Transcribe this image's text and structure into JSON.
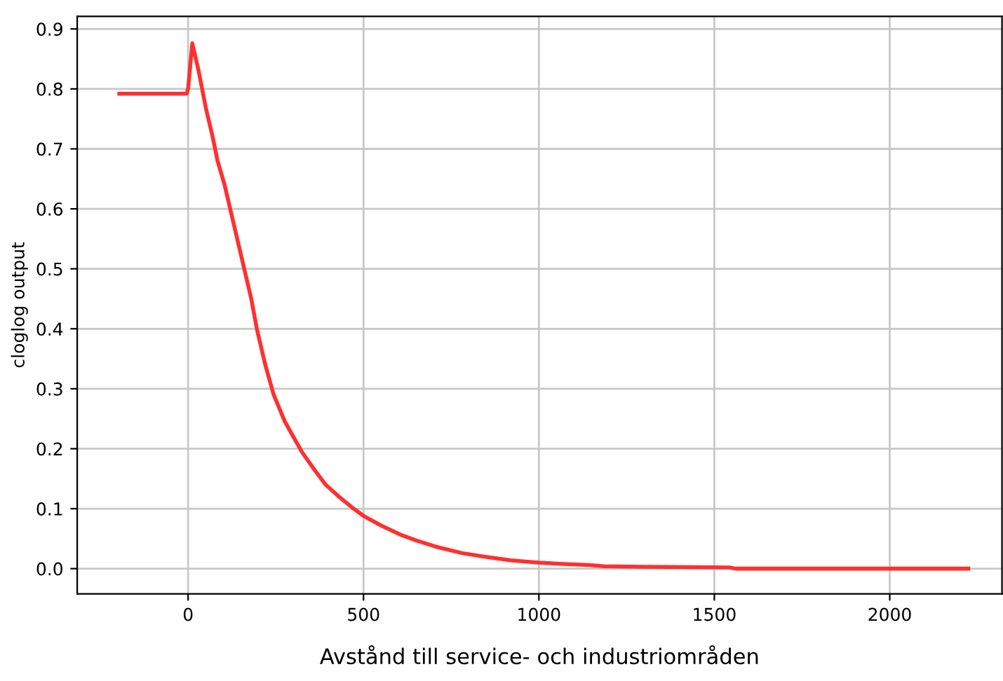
{
  "chart_data": {
    "type": "line",
    "xlabel": "Avstånd till service- och industriområden",
    "ylabel": "cloglog output",
    "x": [
      -196,
      -4,
      0,
      12,
      30,
      50,
      70,
      84,
      104,
      124,
      144,
      164,
      180,
      196,
      220,
      244,
      276,
      300,
      324,
      360,
      392,
      430,
      472,
      500,
      550,
      604,
      650,
      704,
      780,
      844,
      920,
      1000,
      1060,
      1144,
      1184,
      1300,
      1544,
      1560,
      1800,
      2224
    ],
    "series": [
      {
        "color": "#ff3030",
        "values": [
          0.792,
          0.792,
          0.8,
          0.876,
          0.83,
          0.77,
          0.72,
          0.68,
          0.64,
          0.59,
          0.54,
          0.49,
          0.45,
          0.4,
          0.34,
          0.29,
          0.245,
          0.22,
          0.195,
          0.165,
          0.14,
          0.12,
          0.1,
          0.088,
          0.072,
          0.057,
          0.047,
          0.037,
          0.026,
          0.02,
          0.014,
          0.01,
          0.008,
          0.006,
          0.004,
          0.003,
          0.002,
          0.0,
          0.0,
          0.0
        ]
      }
    ],
    "xlim": [
      -316,
      2320
    ],
    "ylim": [
      -0.042,
      0.921
    ],
    "xticks": [
      0,
      500,
      1000,
      1500,
      2000
    ],
    "yticks": [
      {
        "value": 0,
        "label": "0.0"
      },
      0.1,
      0.2,
      0.3,
      0.4,
      0.5,
      0.6,
      0.7,
      0.8,
      0.9
    ],
    "grid": true,
    "legend": false,
    "marker": "none",
    "line_style": "solid"
  }
}
